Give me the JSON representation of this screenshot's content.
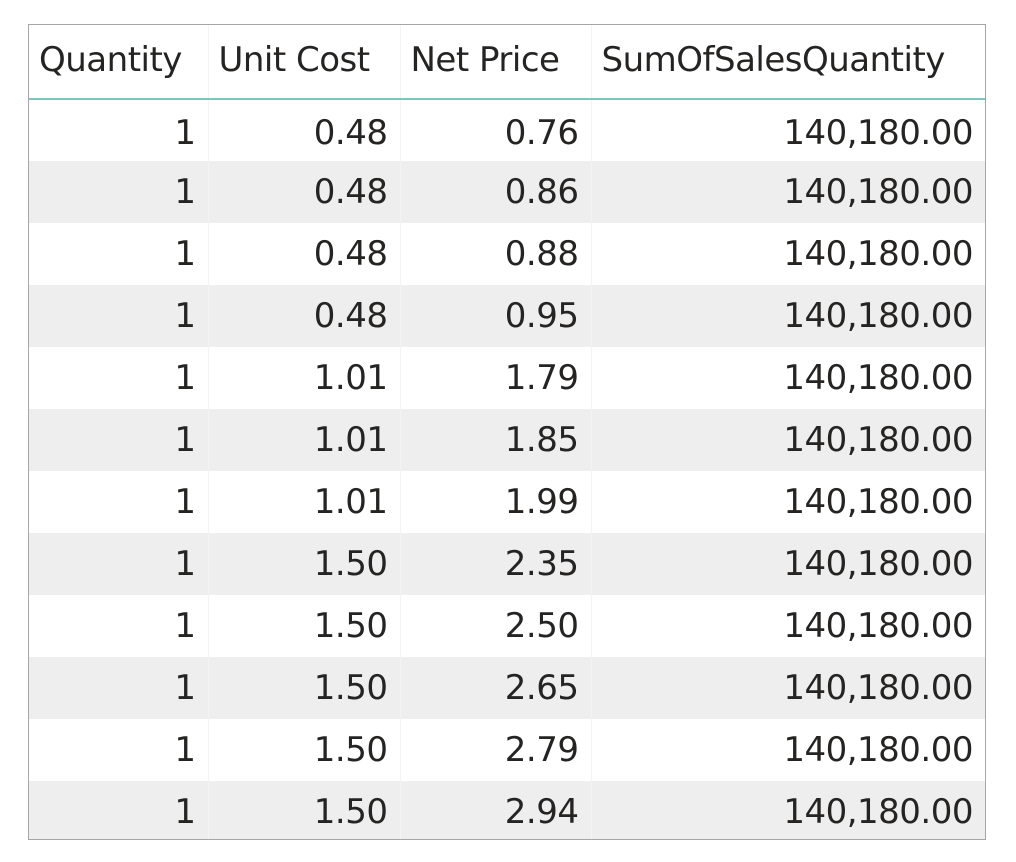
{
  "table": {
    "headers": [
      "Quantity",
      "Unit Cost",
      "Net Price",
      "SumOfSalesQuantity"
    ],
    "rows": [
      [
        "1",
        "0.48",
        "0.76",
        "140,180.00"
      ],
      [
        "1",
        "0.48",
        "0.86",
        "140,180.00"
      ],
      [
        "1",
        "0.48",
        "0.88",
        "140,180.00"
      ],
      [
        "1",
        "0.48",
        "0.95",
        "140,180.00"
      ],
      [
        "1",
        "1.01",
        "1.79",
        "140,180.00"
      ],
      [
        "1",
        "1.01",
        "1.85",
        "140,180.00"
      ],
      [
        "1",
        "1.01",
        "1.99",
        "140,180.00"
      ],
      [
        "1",
        "1.50",
        "2.35",
        "140,180.00"
      ],
      [
        "1",
        "1.50",
        "2.50",
        "140,180.00"
      ],
      [
        "1",
        "1.50",
        "2.65",
        "140,180.00"
      ],
      [
        "1",
        "1.50",
        "2.79",
        "140,180.00"
      ],
      [
        "1",
        "1.50",
        "2.94",
        "140,180.00"
      ]
    ]
  }
}
